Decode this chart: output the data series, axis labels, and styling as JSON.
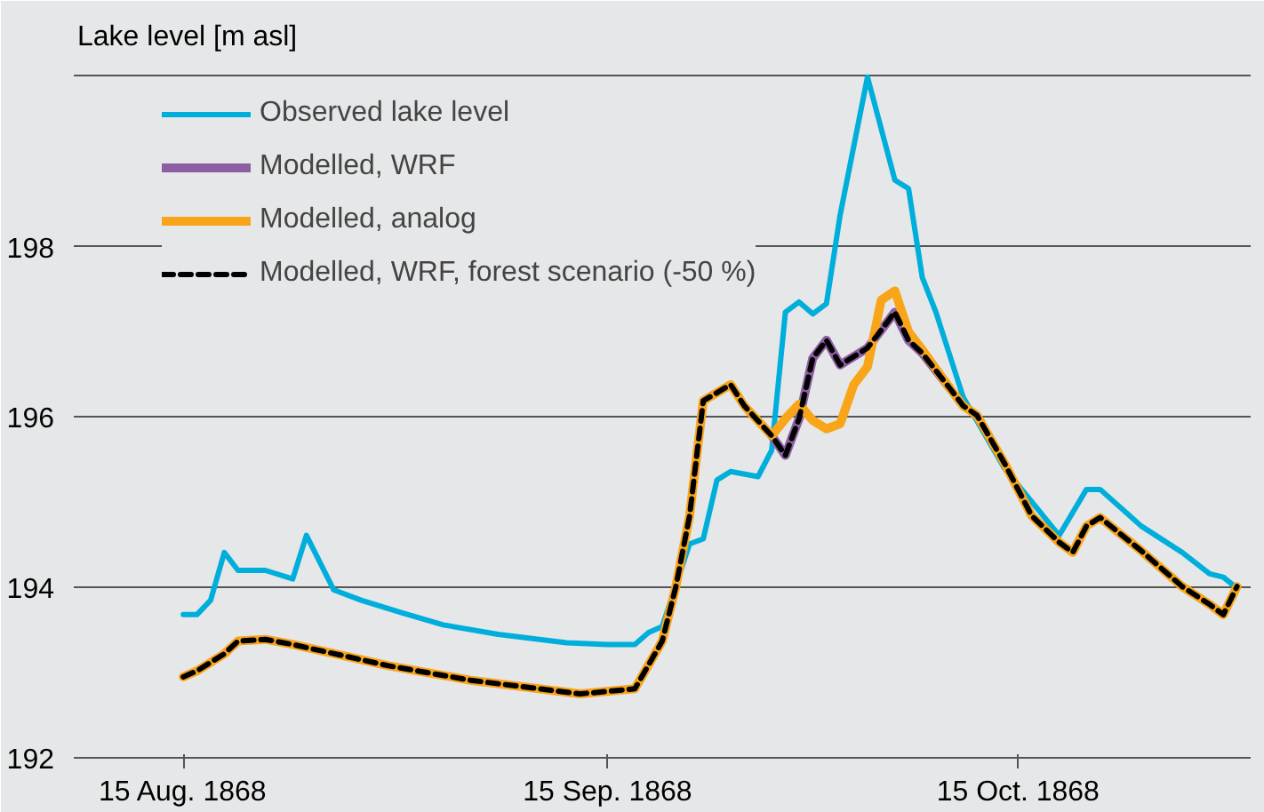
{
  "chart_data": {
    "type": "line",
    "ylabel": "Lake level [m asl]",
    "xlim": [
      "1868-08-07",
      "1868-11-01"
    ],
    "xticks": [
      {
        "value": "1868-08-15",
        "label": "15 Aug. 1868"
      },
      {
        "value": "1868-09-15",
        "label": "15 Sep. 1868"
      },
      {
        "value": "1868-10-15",
        "label": "15 Oct. 1868"
      }
    ],
    "ylim": [
      192,
      200.8
    ],
    "yticks": [
      192,
      194,
      196,
      198,
      {
        "value": 200,
        "label": null
      }
    ],
    "grid": "y",
    "legend": "top left",
    "marker": "none",
    "series": [
      {
        "name": "Observed lake level",
        "color": "#00aedb",
        "line_style": "solid",
        "x": [
          "1868-08-15",
          "1868-08-16",
          "1868-08-17",
          "1868-08-18",
          "1868-08-19",
          "1868-08-21",
          "1868-08-23",
          "1868-08-24",
          "1868-08-26",
          "1868-08-28",
          "1868-08-31",
          "1868-09-03",
          "1868-09-07",
          "1868-09-12",
          "1868-09-15",
          "1868-09-17",
          "1868-09-18",
          "1868-09-19",
          "1868-09-21",
          "1868-09-22",
          "1868-09-23",
          "1868-09-24",
          "1868-09-26",
          "1868-09-27",
          "1868-09-28",
          "1868-09-29",
          "1868-09-30",
          "1868-10-01",
          "1868-10-02",
          "1868-10-04",
          "1868-10-06",
          "1868-10-07",
          "1868-10-08",
          "1868-10-09",
          "1868-10-11",
          "1868-10-14",
          "1868-10-18",
          "1868-10-20",
          "1868-10-21",
          "1868-10-24",
          "1868-10-27",
          "1868-10-29",
          "1868-10-30",
          "1868-10-31"
        ],
        "values": [
          193.68,
          193.68,
          193.85,
          194.41,
          194.2,
          194.2,
          194.1,
          194.61,
          193.97,
          193.85,
          193.7,
          193.56,
          193.45,
          193.35,
          193.33,
          193.33,
          193.47,
          193.54,
          194.51,
          194.57,
          195.26,
          195.36,
          195.3,
          195.61,
          197.23,
          197.35,
          197.21,
          197.33,
          198.37,
          199.99,
          198.78,
          198.68,
          197.64,
          197.23,
          196.23,
          195.4,
          194.61,
          195.15,
          195.15,
          194.72,
          194.41,
          194.16,
          194.12,
          193.99
        ]
      },
      {
        "name": "Modelled, WRF",
        "color": "#8e5ea2",
        "line_style": "solid",
        "x": [
          "1868-09-27",
          "1868-09-28",
          "1868-09-29",
          "1868-09-30",
          "1868-10-01",
          "1868-10-02",
          "1868-10-04",
          "1868-10-06",
          "1868-10-07",
          "1868-10-08",
          "1868-10-10"
        ],
        "values": [
          195.78,
          195.55,
          195.98,
          196.69,
          196.9,
          196.61,
          196.81,
          197.23,
          196.9,
          196.75,
          196.34
        ]
      },
      {
        "name": "Modelled, analog",
        "color": "#f9a51a",
        "line_style": "solid",
        "x": [
          "1868-08-15",
          "1868-08-16",
          "1868-08-18",
          "1868-08-19",
          "1868-08-21",
          "1868-08-23",
          "1868-08-30",
          "1868-09-05",
          "1868-09-13",
          "1868-09-17",
          "1868-09-19",
          "1868-09-20",
          "1868-09-21",
          "1868-09-22",
          "1868-09-24",
          "1868-09-25",
          "1868-09-27",
          "1868-09-28",
          "1868-09-29",
          "1868-09-30",
          "1868-10-01",
          "1868-10-02",
          "1868-10-03",
          "1868-10-04",
          "1868-10-05",
          "1868-10-06",
          "1868-10-07",
          "1868-10-08",
          "1868-10-10",
          "1868-10-11",
          "1868-10-12",
          "1868-10-14",
          "1868-10-16",
          "1868-10-18",
          "1868-10-19",
          "1868-10-20",
          "1868-10-21",
          "1868-10-24",
          "1868-10-27",
          "1868-10-29",
          "1868-10-30",
          "1868-10-31"
        ],
        "values": [
          192.95,
          193.02,
          193.22,
          193.37,
          193.39,
          193.33,
          193.08,
          192.91,
          192.75,
          192.81,
          193.37,
          194.01,
          194.84,
          196.19,
          196.38,
          196.13,
          195.78,
          195.98,
          196.15,
          195.96,
          195.86,
          195.92,
          196.38,
          196.59,
          197.37,
          197.48,
          197.0,
          196.79,
          196.34,
          196.13,
          196.02,
          195.46,
          194.84,
          194.53,
          194.41,
          194.72,
          194.82,
          194.43,
          194.01,
          193.8,
          193.68,
          194.01
        ]
      },
      {
        "name": "Modelled, WRF, forest scenario (-50 %)",
        "color": "#000000",
        "line_style": "dashed",
        "x": [
          "1868-08-15",
          "1868-08-16",
          "1868-08-18",
          "1868-08-19",
          "1868-08-21",
          "1868-08-23",
          "1868-08-30",
          "1868-09-05",
          "1868-09-13",
          "1868-09-17",
          "1868-09-19",
          "1868-09-20",
          "1868-09-21",
          "1868-09-22",
          "1868-09-24",
          "1868-09-25",
          "1868-09-27",
          "1868-09-28",
          "1868-09-29",
          "1868-09-30",
          "1868-10-01",
          "1868-10-02",
          "1868-10-04",
          "1868-10-06",
          "1868-10-07",
          "1868-10-08",
          "1868-10-10",
          "1868-10-11",
          "1868-10-12",
          "1868-10-14",
          "1868-10-16",
          "1868-10-18",
          "1868-10-19",
          "1868-10-20",
          "1868-10-21",
          "1868-10-24",
          "1868-10-27",
          "1868-10-29",
          "1868-10-30",
          "1868-10-31"
        ],
        "values": [
          192.95,
          193.02,
          193.22,
          193.37,
          193.39,
          193.33,
          193.08,
          192.91,
          192.75,
          192.81,
          193.37,
          194.01,
          194.84,
          196.19,
          196.38,
          196.13,
          195.78,
          195.55,
          195.98,
          196.69,
          196.9,
          196.61,
          196.81,
          197.23,
          196.9,
          196.75,
          196.34,
          196.13,
          196.02,
          195.46,
          194.84,
          194.53,
          194.41,
          194.72,
          194.82,
          194.43,
          194.01,
          193.8,
          193.68,
          194.01
        ]
      }
    ]
  }
}
